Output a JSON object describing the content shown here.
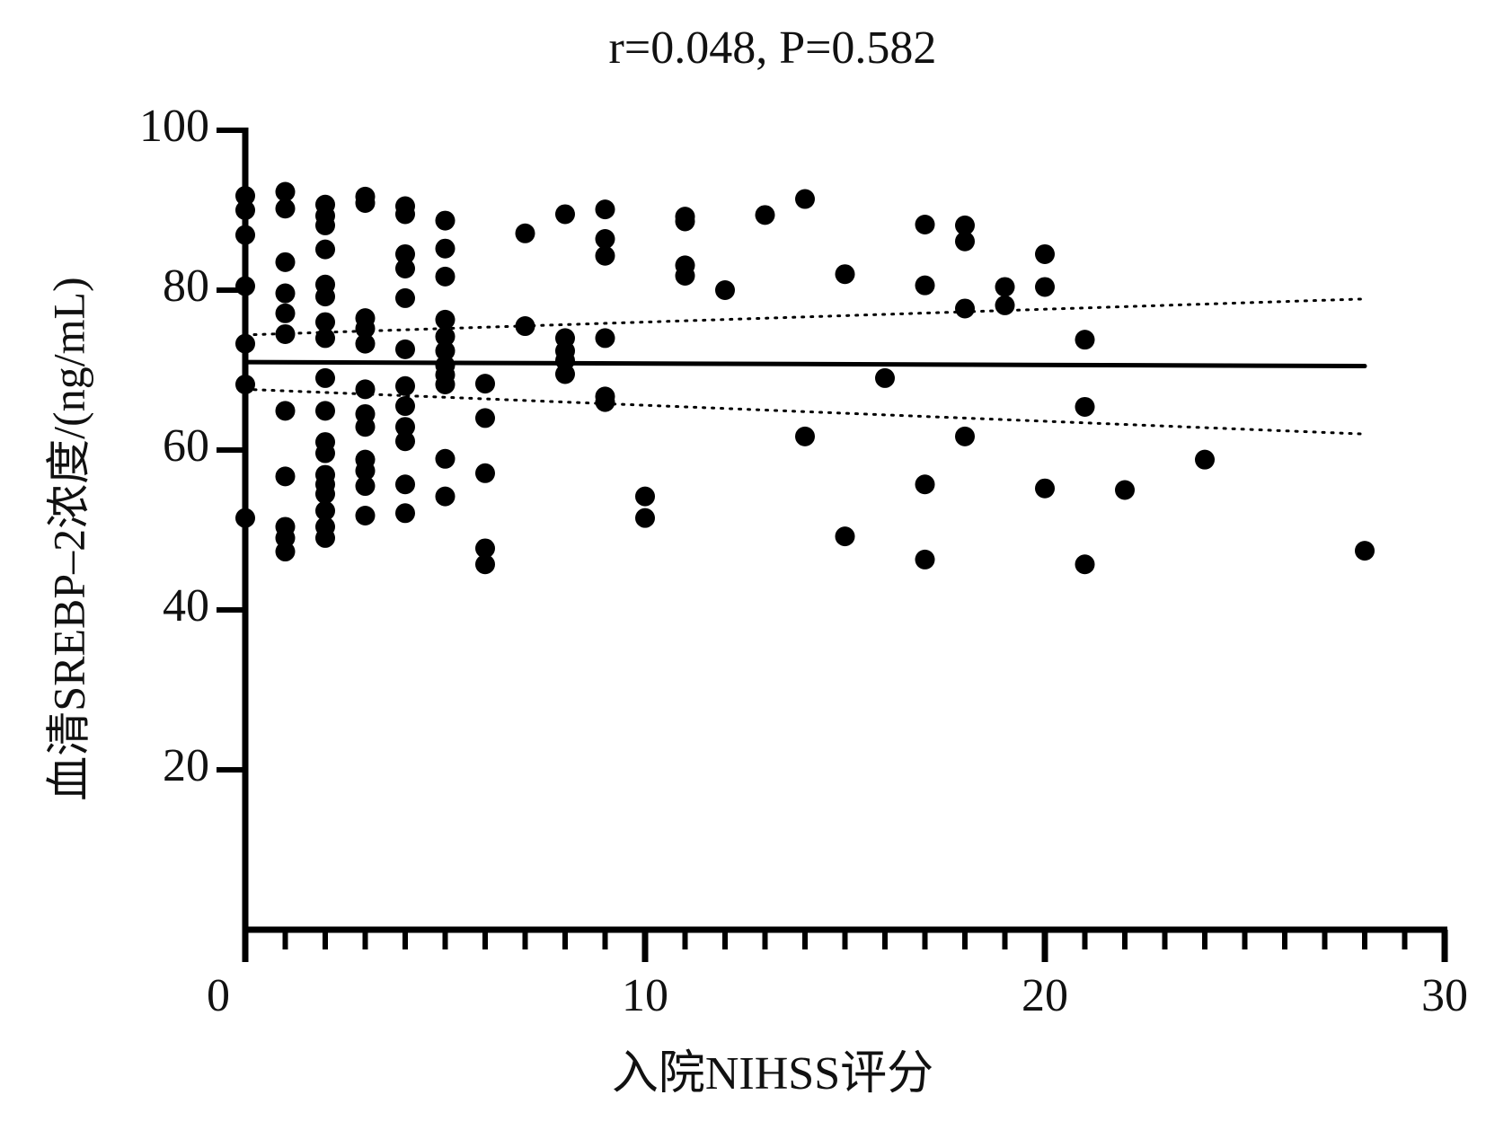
{
  "chart_data": {
    "type": "scatter",
    "title": "r=0.048, P=0.582",
    "x_label": "入院NIHSS评分",
    "y_label": "血清SREBP–2浓度/(ng/mL)",
    "xlim": [
      0,
      30
    ],
    "ylim": [
      0,
      100
    ],
    "xticks": [
      0,
      10,
      20,
      30
    ],
    "x_minor_ticks": [
      1,
      2,
      3,
      4,
      5,
      6,
      7,
      8,
      9,
      11,
      12,
      13,
      14,
      15,
      16,
      17,
      18,
      19,
      21,
      22,
      23,
      24,
      25,
      26,
      27,
      28,
      29
    ],
    "yticks": [
      20,
      40,
      60,
      80,
      100
    ],
    "grid": false,
    "color": "#000000",
    "x": [
      0,
      0,
      0,
      0,
      0,
      0,
      0,
      1,
      1,
      1,
      1,
      1,
      1,
      1,
      1,
      1,
      1,
      1,
      2,
      2,
      2,
      2,
      2,
      2,
      2,
      2,
      2,
      2,
      2,
      2,
      2,
      2,
      2,
      2,
      2,
      2,
      3,
      3,
      3,
      3,
      3,
      3,
      3,
      3,
      3,
      3,
      3,
      3,
      4,
      4,
      4,
      4,
      4,
      4,
      4,
      4,
      4,
      4,
      4,
      4,
      5,
      5,
      5,
      5,
      5,
      5,
      5,
      5,
      5,
      5,
      5,
      6,
      6,
      6,
      6,
      6,
      7,
      7,
      8,
      8,
      8,
      8,
      8,
      9,
      9,
      9,
      9,
      9,
      9,
      10,
      10,
      11,
      11,
      11,
      11,
      12,
      13,
      14,
      14,
      15,
      15,
      16,
      17,
      17,
      17,
      17,
      18,
      18,
      18,
      18,
      19,
      19,
      20,
      20,
      20,
      21,
      21,
      21,
      22,
      24,
      28
    ],
    "values": [
      91.8,
      90.0,
      86.9,
      80.5,
      73.3,
      68.2,
      51.5,
      92.3,
      90.2,
      83.5,
      79.6,
      77.1,
      74.5,
      64.9,
      56.7,
      50.4,
      49.0,
      47.3,
      90.7,
      89.3,
      88.1,
      85.1,
      80.7,
      79.2,
      76.0,
      74.0,
      69.0,
      64.9,
      61.0,
      59.6,
      56.9,
      55.7,
      54.5,
      52.4,
      50.4,
      49.0,
      91.7,
      90.9,
      76.5,
      75.2,
      73.3,
      67.6,
      64.5,
      62.9,
      58.8,
      57.4,
      55.5,
      51.8,
      90.5,
      89.5,
      84.5,
      82.7,
      79.0,
      72.6,
      68.0,
      65.5,
      62.9,
      61.1,
      55.7,
      52.1,
      88.7,
      85.2,
      81.7,
      76.3,
      74.2,
      72.4,
      70.6,
      69.4,
      68.2,
      58.9,
      54.2,
      68.3,
      64.0,
      57.1,
      47.7,
      45.7,
      87.1,
      75.5,
      89.5,
      74.0,
      72.4,
      71.2,
      69.5,
      90.1,
      86.4,
      84.3,
      74.0,
      66.7,
      66.0,
      54.2,
      51.5,
      89.2,
      88.6,
      83.1,
      81.8,
      80.0,
      89.4,
      91.4,
      61.7,
      82.0,
      49.2,
      69.0,
      88.2,
      80.6,
      55.7,
      46.3,
      88.1,
      86.1,
      77.7,
      61.7,
      80.4,
      78.1,
      84.5,
      80.4,
      55.2,
      73.8,
      65.4,
      45.7,
      55.0,
      58.8,
      47.4
    ],
    "fit_lines": [
      {
        "style": "solid",
        "x": [
          0,
          28
        ],
        "values": [
          71.0,
          70.5
        ]
      },
      {
        "style": "dotted",
        "x": [
          0,
          28
        ],
        "values": [
          74.4,
          78.9
        ]
      },
      {
        "style": "dotted",
        "x": [
          0,
          28
        ],
        "values": [
          67.6,
          62.0
        ]
      }
    ]
  }
}
